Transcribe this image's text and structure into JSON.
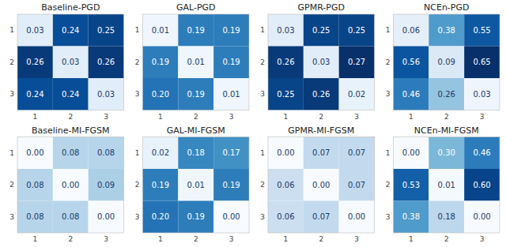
{
  "chart_data": [
    {
      "type": "heatmap",
      "title": "Baseline-PGD",
      "categories": [
        "1",
        "2",
        "3"
      ],
      "values": [
        [
          0.03,
          0.24,
          0.25
        ],
        [
          0.26,
          0.03,
          0.26
        ],
        [
          0.24,
          0.24,
          0.03
        ]
      ],
      "value_labels": [
        [
          "0.03",
          "0.24",
          "0.25"
        ],
        [
          "0.26",
          "0.03",
          "0.26"
        ],
        [
          "0.24",
          "0.24",
          "0.03"
        ]
      ],
      "color_range": [
        0.0,
        0.27
      ],
      "data_labels": true
    },
    {
      "type": "heatmap",
      "title": "GAL-PGD",
      "categories": [
        "1",
        "2",
        "3"
      ],
      "values": [
        [
          0.01,
          0.19,
          0.19
        ],
        [
          0.19,
          0.01,
          0.19
        ],
        [
          0.2,
          0.19,
          0.01
        ]
      ],
      "value_labels": [
        [
          "0.01",
          "0.19",
          "0.19"
        ],
        [
          "0.19",
          "0.01",
          "0.19"
        ],
        [
          "0.20",
          "0.19",
          "0.01"
        ]
      ],
      "color_range": [
        0.0,
        0.27
      ],
      "data_labels": true
    },
    {
      "type": "heatmap",
      "title": "GPMR-PGD",
      "categories": [
        "1",
        "2",
        "3"
      ],
      "values": [
        [
          0.03,
          0.25,
          0.25
        ],
        [
          0.26,
          0.03,
          0.27
        ],
        [
          0.25,
          0.26,
          0.02
        ]
      ],
      "value_labels": [
        [
          "0.03",
          "0.25",
          "0.25"
        ],
        [
          "0.26",
          "0.03",
          "0.27"
        ],
        [
          "0.25",
          "0.26",
          "0.02"
        ]
      ],
      "color_range": [
        0.0,
        0.27
      ],
      "data_labels": true
    },
    {
      "type": "heatmap",
      "title": "NCEn-PGD",
      "categories": [
        "1",
        "2",
        "3"
      ],
      "values": [
        [
          0.06,
          0.38,
          0.55
        ],
        [
          0.56,
          0.09,
          0.65
        ],
        [
          0.46,
          0.26,
          0.03
        ]
      ],
      "value_labels": [
        [
          "0.06",
          "0.38",
          "0.55"
        ],
        [
          "0.56",
          "0.09",
          "0.65"
        ],
        [
          "0.46",
          "0.26",
          "0.03"
        ]
      ],
      "color_range": [
        0.0,
        0.65
      ],
      "data_labels": true
    },
    {
      "type": "heatmap",
      "title": "Baseline-MI-FGSM",
      "categories": [
        "1",
        "2",
        "3"
      ],
      "values": [
        [
          0.0,
          0.08,
          0.08
        ],
        [
          0.08,
          0.0,
          0.09
        ],
        [
          0.08,
          0.08,
          0.0
        ]
      ],
      "value_labels": [
        [
          "0.00",
          "0.08",
          "0.08"
        ],
        [
          "0.08",
          "0.00",
          "0.09"
        ],
        [
          "0.08",
          "0.08",
          "0.00"
        ]
      ],
      "color_range": [
        0.0,
        0.27
      ],
      "data_labels": true
    },
    {
      "type": "heatmap",
      "title": "GAL-MI-FGSM",
      "categories": [
        "1",
        "2",
        "3"
      ],
      "values": [
        [
          0.02,
          0.18,
          0.17
        ],
        [
          0.19,
          0.01,
          0.19
        ],
        [
          0.2,
          0.19,
          0.0
        ]
      ],
      "value_labels": [
        [
          "0.02",
          "0.18",
          "0.17"
        ],
        [
          "0.19",
          "0.01",
          "0.19"
        ],
        [
          "0.20",
          "0.19",
          "0.00"
        ]
      ],
      "color_range": [
        0.0,
        0.27
      ],
      "data_labels": true
    },
    {
      "type": "heatmap",
      "title": "GPMR-MI-FGSM",
      "categories": [
        "1",
        "2",
        "3"
      ],
      "values": [
        [
          0.0,
          0.07,
          0.07
        ],
        [
          0.06,
          0.0,
          0.07
        ],
        [
          0.06,
          0.07,
          0.0
        ]
      ],
      "value_labels": [
        [
          "0.00",
          "0.07",
          "0.07"
        ],
        [
          "0.06",
          "0.00",
          "0.07"
        ],
        [
          "0.06",
          "0.07",
          "0.00"
        ]
      ],
      "color_range": [
        0.0,
        0.27
      ],
      "data_labels": true
    },
    {
      "type": "heatmap",
      "title": "NCEn-MI-FGSM",
      "categories": [
        "1",
        "2",
        "3"
      ],
      "values": [
        [
          0.0,
          0.3,
          0.46
        ],
        [
          0.53,
          0.01,
          0.6
        ],
        [
          0.38,
          0.18,
          0.0
        ]
      ],
      "value_labels": [
        [
          "0.00",
          "0.30",
          "0.46"
        ],
        [
          "0.53",
          "0.01",
          "0.60"
        ],
        [
          "0.38",
          "0.18",
          "0.00"
        ]
      ],
      "color_range": [
        0.0,
        0.65
      ],
      "data_labels": true
    }
  ]
}
